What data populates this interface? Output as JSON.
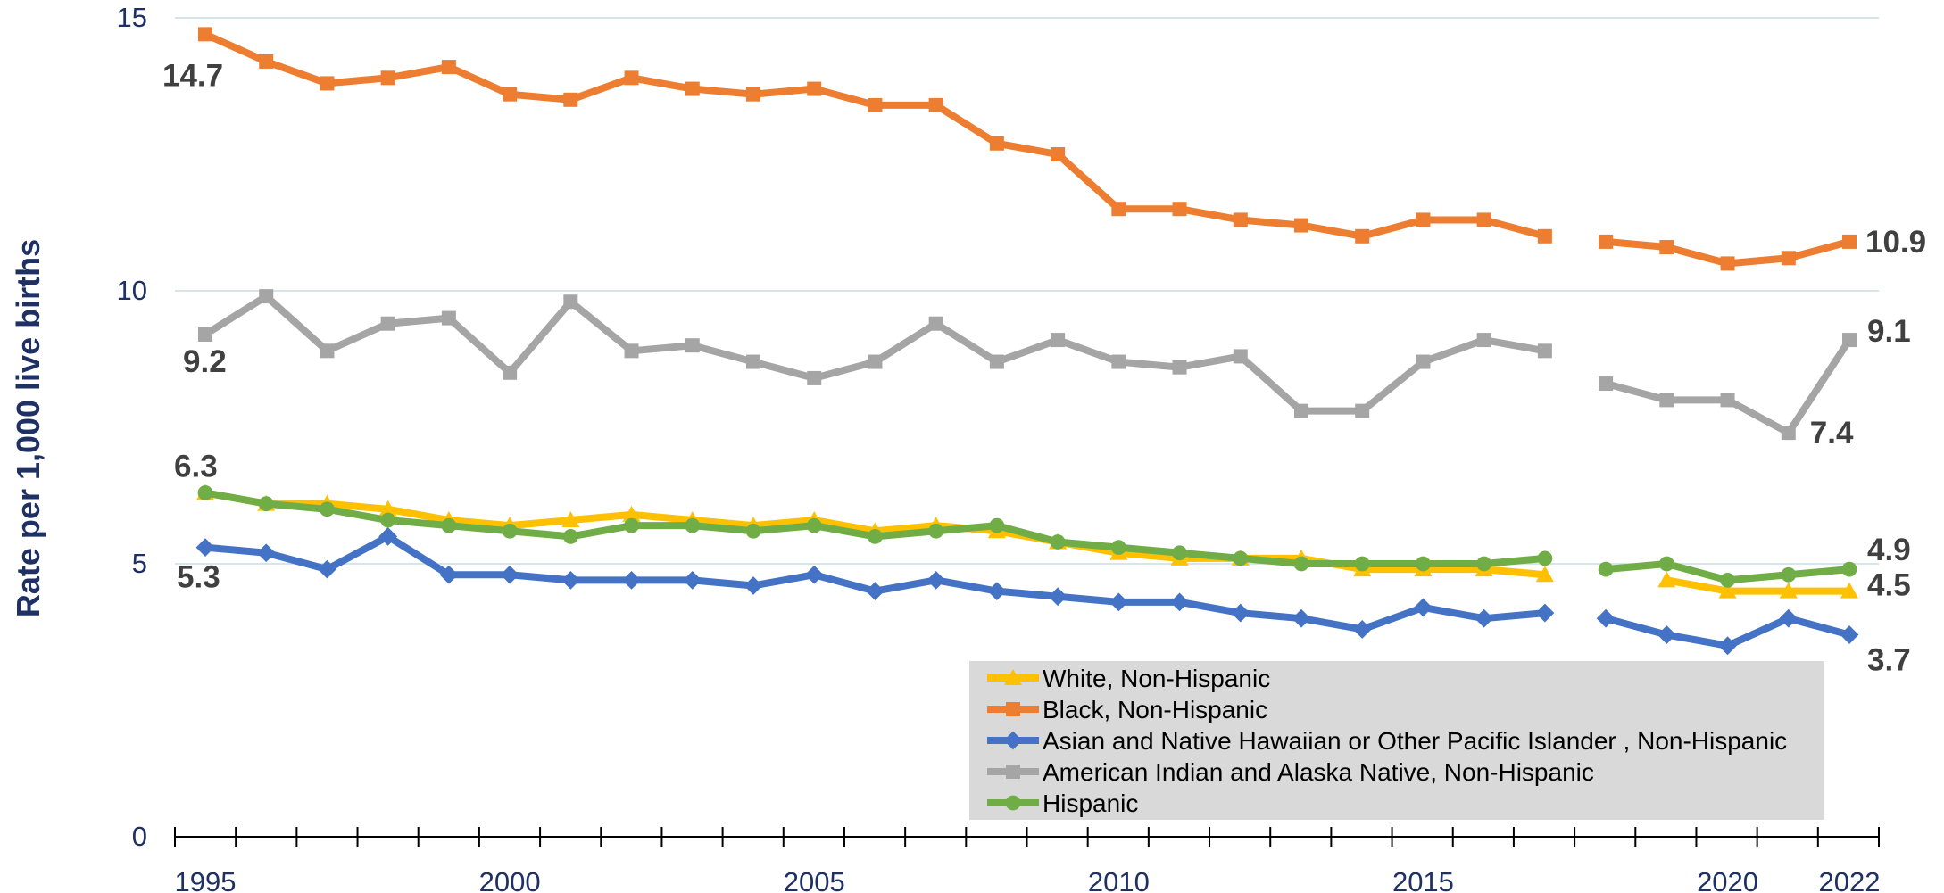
{
  "chart_data": {
    "type": "line",
    "title": "",
    "xlabel": "",
    "ylabel": "Rate per 1,000 live births",
    "xlim": [
      1995,
      2022
    ],
    "ylim": [
      0,
      15
    ],
    "yticks": [
      0,
      5,
      10,
      15
    ],
    "xticks": [
      1995,
      2000,
      2005,
      2010,
      2015,
      2020,
      2022
    ],
    "grid": "horizontal",
    "legend_position": "bottom-right",
    "x": [
      1995,
      1996,
      1997,
      1998,
      1999,
      2000,
      2001,
      2002,
      2003,
      2004,
      2005,
      2006,
      2007,
      2008,
      2009,
      2010,
      2011,
      2012,
      2013,
      2014,
      2015,
      2016,
      2017,
      2018,
      2019,
      2020,
      2021,
      2022
    ],
    "series": [
      {
        "name": "White, Non-Hispanic",
        "color": "#ffc000",
        "marker": "triangle",
        "values": [
          6.3,
          6.1,
          6.1,
          6.0,
          5.8,
          5.7,
          5.8,
          5.9,
          5.8,
          5.7,
          5.8,
          5.6,
          5.7,
          5.6,
          5.4,
          5.2,
          5.1,
          5.1,
          5.1,
          4.9,
          4.9,
          4.9,
          4.8,
          null,
          4.7,
          4.5,
          4.5,
          4.5
        ]
      },
      {
        "name": "Black, Non-Hispanic",
        "color": "#ed7d31",
        "marker": "square",
        "values": [
          14.7,
          14.2,
          13.8,
          13.9,
          14.1,
          13.6,
          13.5,
          13.9,
          13.7,
          13.6,
          13.7,
          13.4,
          13.4,
          12.7,
          12.5,
          11.5,
          11.5,
          11.3,
          11.2,
          11.0,
          11.3,
          11.3,
          11.0,
          10.9,
          10.8,
          10.5,
          10.6,
          10.9
        ]
      },
      {
        "name": "Asian and Native Hawaiian or Other Pacific Islander , Non-Hispanic",
        "color": "#4472c4",
        "marker": "diamond",
        "values": [
          5.3,
          5.2,
          4.9,
          5.5,
          4.8,
          4.8,
          4.7,
          4.7,
          4.7,
          4.6,
          4.8,
          4.5,
          4.7,
          4.5,
          4.4,
          4.3,
          4.3,
          4.1,
          4.0,
          3.8,
          4.2,
          4.0,
          4.1,
          4.0,
          3.7,
          3.5,
          4.0,
          3.7
        ]
      },
      {
        "name": "American Indian and Alaska Native, Non-Hispanic",
        "color": "#a5a5a5",
        "marker": "square",
        "values": [
          9.2,
          9.9,
          8.9,
          9.4,
          9.5,
          8.5,
          9.8,
          8.9,
          9.0,
          8.7,
          8.4,
          8.7,
          9.4,
          8.7,
          9.1,
          8.7,
          8.6,
          8.8,
          7.8,
          7.8,
          8.7,
          9.1,
          8.9,
          8.3,
          8.0,
          8.0,
          7.4,
          9.1
        ]
      },
      {
        "name": "Hispanic",
        "color": "#70ad47",
        "marker": "circle",
        "values": [
          6.3,
          6.1,
          6.0,
          5.8,
          5.7,
          5.6,
          5.5,
          5.7,
          5.7,
          5.6,
          5.7,
          5.5,
          5.6,
          5.7,
          5.4,
          5.3,
          5.2,
          5.1,
          5.0,
          5.0,
          5.0,
          5.0,
          5.1,
          4.9,
          5.0,
          4.7,
          4.8,
          4.9
        ]
      }
    ],
    "annotations": [
      {
        "text": "14.7",
        "series": 1,
        "year": 1995
      },
      {
        "text": "9.2",
        "series": 3,
        "year": 1995
      },
      {
        "text": "6.3",
        "series": 0,
        "year": 1995
      },
      {
        "text": "5.3",
        "series": 2,
        "year": 1995
      },
      {
        "text": "10.9",
        "series": 1,
        "year": 2022
      },
      {
        "text": "9.1",
        "series": 3,
        "year": 2022
      },
      {
        "text": "7.4",
        "series": 3,
        "year": 2021
      },
      {
        "text": "4.9",
        "series": 4,
        "year": 2022
      },
      {
        "text": "4.5",
        "series": 0,
        "year": 2022
      },
      {
        "text": "3.7",
        "series": 2,
        "year": 2022
      }
    ],
    "gap_after_year": 2017
  }
}
